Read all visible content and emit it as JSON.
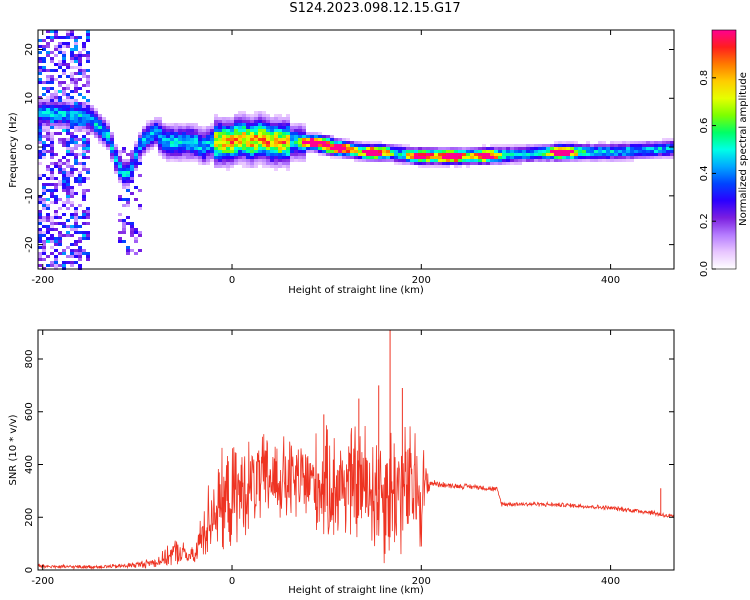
{
  "title": "S124.2023.098.12.15.G17",
  "chart_data": [
    {
      "type": "heatmap",
      "xlabel": "Height of straight line (km)",
      "ylabel": "Frequency (Hz)",
      "xlim": [
        -205,
        467
      ],
      "ylim": [
        -25,
        24
      ],
      "xticks": [
        -200,
        0,
        200,
        400
      ],
      "yticks": [
        -20,
        -10,
        0,
        10,
        20
      ],
      "colorbar": {
        "label": "Normalized spectral amplitude",
        "range": [
          0.0,
          1.0
        ],
        "ticks": [
          "0.0",
          "0.2",
          "0.4",
          "0.6",
          "0.8"
        ],
        "colors": [
          "#ffffff",
          "#e8c6ff",
          "#b57cff",
          "#7b1fe0",
          "#2b00ff",
          "#0044ff",
          "#00a8ff",
          "#00ffe6",
          "#00ff66",
          "#7dff00",
          "#e6ff00",
          "#ffcc00",
          "#ff7a00",
          "#ff1e1e",
          "#ff0090"
        ]
      },
      "ridge": {
        "x": [
          -205,
          -190,
          -170,
          -150,
          -130,
          -120,
          -112,
          -105,
          -98,
          -90,
          -80,
          -70,
          -60,
          -50,
          -40,
          -30,
          -20,
          -10,
          0,
          10,
          20,
          30,
          40,
          50,
          60,
          80,
          100,
          120,
          140,
          160,
          180,
          200,
          250,
          300,
          350,
          400,
          467
        ],
        "freq": [
          7,
          7,
          6.5,
          6,
          2,
          -4,
          -6,
          -4,
          0,
          2,
          3,
          1,
          1,
          1,
          1,
          0,
          1,
          1,
          1,
          2,
          1,
          2,
          1,
          1,
          1,
          1,
          0.5,
          -0.5,
          -1,
          -1,
          -1.5,
          -2,
          -2,
          -1.5,
          -1,
          -1,
          -0.3
        ]
      },
      "peaks": [
        {
          "x": 87,
          "freq": 1,
          "amp": 0.9
        },
        {
          "x": 112,
          "freq": -0.3,
          "amp": 0.9
        },
        {
          "x": 150,
          "freq": -1.2,
          "amp": 0.95
        },
        {
          "x": 200,
          "freq": -1.8,
          "amp": 0.8
        },
        {
          "x": 232,
          "freq": -1.9,
          "amp": 1.0
        },
        {
          "x": 268,
          "freq": -1.8,
          "amp": 0.8
        },
        {
          "x": 350,
          "freq": -1.1,
          "amp": 0.95
        }
      ]
    },
    {
      "type": "line",
      "xlabel": "Height of straight line (km)",
      "ylabel": "SNR (10 * v/v)",
      "xlim": [
        -205,
        467
      ],
      "ylim": [
        0,
        910
      ],
      "xticks": [
        -200,
        0,
        200,
        400
      ],
      "yticks": [
        0,
        200,
        400,
        600,
        800
      ],
      "color": "#ee3322",
      "series": [
        {
          "x": [
            -205,
            -180,
            -150,
            -120,
            -100,
            -80,
            -70,
            -60,
            -50,
            -40,
            -30,
            -20,
            -10,
            0,
            20,
            40,
            60,
            80,
            100,
            120,
            140,
            160,
            180,
            200,
            210,
            230,
            260,
            280,
            285,
            320,
            360,
            400,
            440,
            467
          ],
          "mean": [
            15,
            12,
            12,
            14,
            20,
            30,
            45,
            70,
            60,
            45,
            150,
            230,
            250,
            270,
            320,
            350,
            330,
            340,
            310,
            330,
            320,
            300,
            310,
            300,
            330,
            320,
            315,
            305,
            250,
            250,
            245,
            235,
            220,
            200
          ],
          "spread": [
            10,
            8,
            8,
            10,
            15,
            25,
            40,
            60,
            50,
            40,
            140,
            190,
            220,
            230,
            200,
            200,
            200,
            200,
            250,
            260,
            280,
            320,
            300,
            280,
            15,
            12,
            12,
            12,
            10,
            10,
            10,
            10,
            12,
            12
          ]
        }
      ],
      "spikes": [
        {
          "x": 167,
          "y": 910
        },
        {
          "x": 155,
          "y": 700
        },
        {
          "x": 180,
          "y": 690
        },
        {
          "x": 134,
          "y": 650
        },
        {
          "x": 97,
          "y": 590
        },
        {
          "x": 453,
          "y": 310
        }
      ]
    }
  ]
}
